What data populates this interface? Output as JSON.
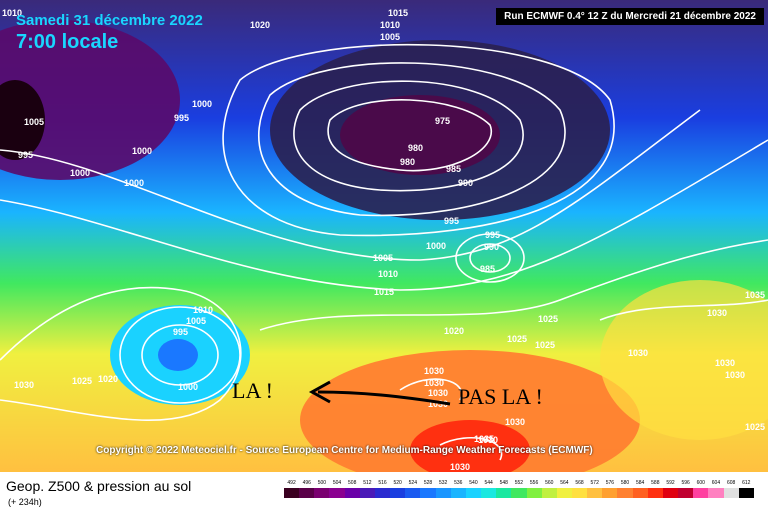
{
  "header": {
    "date": "Samedi 31 décembre 2022",
    "time": "7:00 locale",
    "run": "Run ECMWF 0.4° 12 Z du Mercredi 21 décembre 2022"
  },
  "copyright": "Copyright © 2022 Meteociel.fr - Source European Centre for Medium-Range Weather Forecasts (ECMWF)",
  "annotations": {
    "here": "LA !",
    "not_here": "PAS LA !"
  },
  "legend": {
    "title": "Geop. Z500 & pression au sol",
    "subtitle": "(+ 234h)",
    "values": [
      "492",
      "496",
      "500",
      "504",
      "508",
      "512",
      "516",
      "520",
      "524",
      "528",
      "532",
      "536",
      "540",
      "544",
      "548",
      "552",
      "556",
      "560",
      "564",
      "568",
      "572",
      "576",
      "580",
      "584",
      "588",
      "592",
      "596",
      "600",
      "604",
      "608",
      "612"
    ],
    "colors": [
      "#3a0020",
      "#5a0048",
      "#7a0070",
      "#8a0090",
      "#6a00a8",
      "#4a1ab8",
      "#2a2ad0",
      "#1a3ee0",
      "#1a5af0",
      "#1a78ff",
      "#1a96ff",
      "#1ab4ff",
      "#1ad2ff",
      "#1ae8e0",
      "#1ae8a0",
      "#40e860",
      "#80f040",
      "#c0f040",
      "#f0f040",
      "#ffe040",
      "#ffc040",
      "#ffa030",
      "#ff8030",
      "#ff6020",
      "#ff3010",
      "#e00010",
      "#c00030",
      "#ff40a0",
      "#ff80c0",
      "#e0e0e0",
      "#000000"
    ]
  },
  "isobars": [
    "1010",
    "1020",
    "1015",
    "1010",
    "1005",
    "1005",
    "995",
    "1000",
    "1000",
    "1000",
    "1000",
    "995",
    "975",
    "980",
    "980",
    "985",
    "990",
    "995",
    "1000",
    "995",
    "990",
    "985",
    "1005",
    "1010",
    "1015",
    "1020",
    "1025",
    "1025",
    "1030",
    "1030",
    "1030",
    "1030",
    "1030",
    "1035",
    "1010",
    "1005",
    "995",
    "1000",
    "1030",
    "1025",
    "1020",
    "1030",
    "1030",
    "1030",
    "1030",
    "1035",
    "1030",
    "1030",
    "1025",
    "1030"
  ]
}
